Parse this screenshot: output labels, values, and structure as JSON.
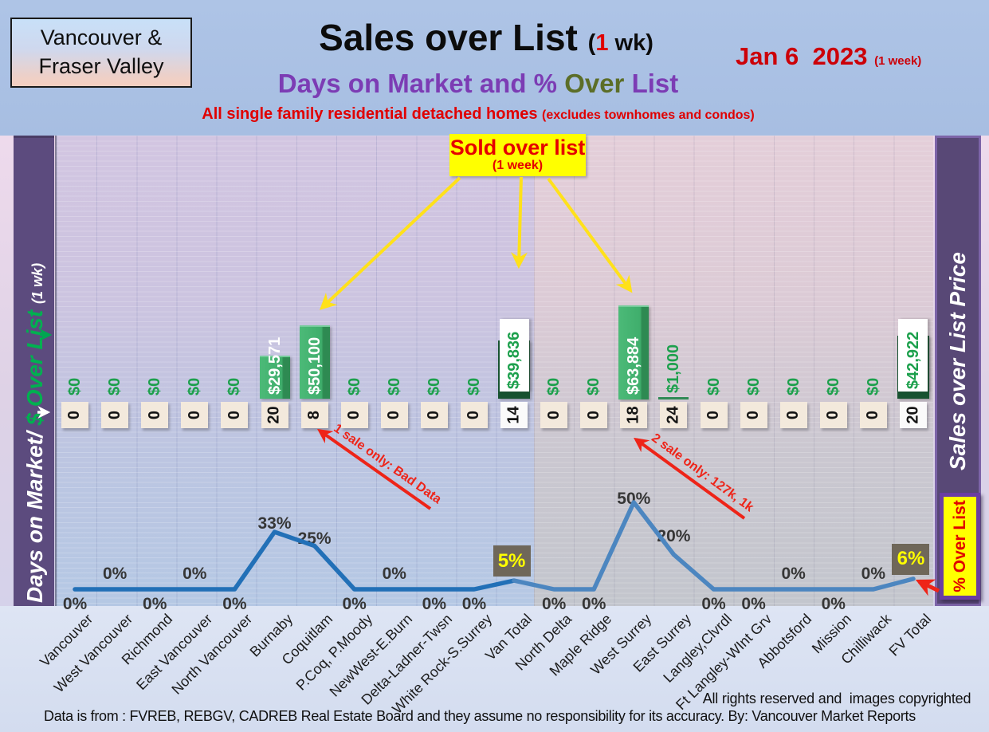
{
  "header": {
    "logo_line1": "Vancouver &",
    "logo_line2": "Fraser Valley",
    "title": "Sales over List",
    "title_note_open": "(",
    "title_note_num": "1",
    "title_note_rest": " wk)",
    "date": "Jan 6  2023",
    "date_note": "(1 week)",
    "subtitle_part1": "Days on Market and % ",
    "subtitle_part2": "Over",
    "subtitle_part3": " List",
    "tagline_main": "All single family residential detached homes ",
    "tagline_note": "(excludes townhomes and condos)"
  },
  "left_axis": {
    "label_days": "Days on Market/",
    "label_over": " $ Over List ",
    "label_wk": "(1 wk)"
  },
  "right_axis": {
    "label": "Sales over List Price",
    "badge": "% Over List"
  },
  "callout": {
    "line1": "Sold over list",
    "line2": "(1 week)"
  },
  "annotations": {
    "note_coquitlam": "1 sale only: Bad Data",
    "note_surrey": "2 sale only: 127k, 1k"
  },
  "footer": {
    "rights": "All rights reserved and  images copyrighted",
    "source": "Data is from : FVREB, REBGV, CADREB Real Estate Board and they assume no responsibility for its accuracy. By: Vancouver Market Reports"
  },
  "colors": {
    "bar_green": "#3fae6c",
    "bar_dark_green": "#175230",
    "line_blue": "#2a72b8",
    "sidebar_purple": "#5c4b7e",
    "callout_yellow": "#ffff00",
    "annotation_red": "#ee2418",
    "pct_box_gray": "#6f6759",
    "dollar_green": "#1ca04c",
    "day_box_cream": "#f3e9dc"
  },
  "chart_data": {
    "type": "combo: bar ($ sold over list, 1 wk) + line (% over list)",
    "title": "Sales over List (1 wk) — Days on Market and % Over List",
    "legend_left": "Days on Market/ $ Over List (1 wk)",
    "legend_right": "Sales over List Price / % Over List",
    "region_split": {
      "vancouver_columns": 12,
      "fraser_valley_columns": 10
    },
    "categories": [
      "Vancouver",
      "West Vancouver",
      "Richmond",
      "East Vancouver",
      "North Vancouver",
      "Burnaby",
      "Coquitlam",
      "P.Coq, P.Moody",
      "NewWest-E.Burn",
      "Delta-Ladner-Twsn",
      "White Rock-S.Surrey",
      "Van Total",
      "North Delta",
      "Maple Ridge",
      "West Surrey",
      "East Surrey",
      "Langley,Clvrdl",
      "Ft Langley-WInt Grv",
      "Abbotsford",
      "Mission",
      "Chilliwack",
      "FV Total"
    ],
    "series": [
      {
        "name": "$ Over List (1 wk)",
        "values": [
          0,
          0,
          0,
          0,
          0,
          29571,
          50100,
          0,
          0,
          0,
          0,
          39836,
          0,
          0,
          63884,
          1000,
          0,
          0,
          0,
          0,
          0,
          42922
        ],
        "labels": [
          "$0",
          "$0",
          "$0",
          "$0",
          "$0",
          "$29,571",
          "$50,100",
          "$0",
          "$0",
          "$0",
          "$0",
          "$39,836",
          "$0",
          "$0",
          "$63,884",
          "$1,000",
          "$0",
          "$0",
          "$0",
          "$0",
          "$0",
          "$42,922"
        ],
        "styles": [
          "zero",
          "zero",
          "zero",
          "zero",
          "zero",
          "bar",
          "bar",
          "zero",
          "zero",
          "zero",
          "zero",
          "total",
          "zero",
          "zero",
          "bar",
          "tick",
          "zero",
          "zero",
          "zero",
          "zero",
          "zero",
          "total"
        ]
      },
      {
        "name": "Days on Market",
        "values": [
          0,
          0,
          0,
          0,
          0,
          20,
          8,
          0,
          0,
          0,
          0,
          14,
          0,
          0,
          18,
          24,
          0,
          0,
          0,
          0,
          0,
          20
        ],
        "highlight_white_box": [
          11,
          21
        ]
      },
      {
        "name": "% Over List",
        "values": [
          0,
          0,
          0,
          0,
          0,
          33,
          25,
          0,
          0,
          0,
          0,
          5,
          0,
          0,
          50,
          20,
          0,
          0,
          0,
          0,
          0,
          6
        ],
        "labels": [
          "0%",
          "0%",
          "0%",
          "0%",
          "0%",
          "33%",
          "25%",
          "0%",
          "0%",
          "0%",
          "0%",
          "5%",
          "0%",
          "0%",
          "50%",
          "20%",
          "0%",
          "0%",
          "0%",
          "0%",
          "0%",
          "6%"
        ],
        "label_pos": [
          "below",
          "above",
          "below",
          "above",
          "below",
          "above",
          "above",
          "below",
          "above",
          "below",
          "below",
          "box",
          "below",
          "below",
          "above",
          "above",
          "below",
          "below",
          "above",
          "below",
          "above",
          "box"
        ],
        "label_dy": [
          null,
          null,
          null,
          null,
          null,
          -22,
          -21,
          null,
          null,
          null,
          null,
          null,
          null,
          null,
          -16,
          -34,
          null,
          null,
          null,
          null,
          null,
          null
        ]
      }
    ],
    "ylim_bars_dollars": [
      0,
      63884
    ],
    "ylim_line_pct": [
      0,
      50
    ],
    "grid": "vertical category gridlines + fine horizontal stripes"
  }
}
